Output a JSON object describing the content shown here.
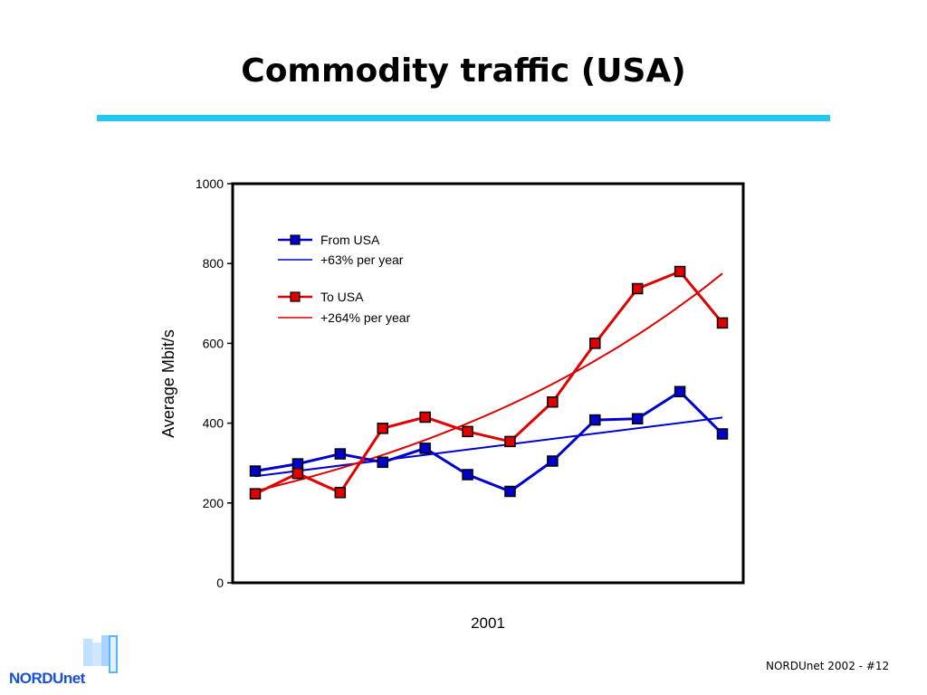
{
  "slide": {
    "title": "Commodity traffic (USA)",
    "footer": "NORDUnet 2002  - #12",
    "logo_text": "NORDUnet"
  },
  "colors": {
    "title_rule": "#1ec8f0",
    "from_usa": "#0000cc",
    "to_usa": "#e00000",
    "logo": "#1a4fd6"
  },
  "chart_data": {
    "type": "line",
    "title": "",
    "xlabel": "2001",
    "ylabel": "Average Mbit/s",
    "ylim": [
      0,
      1000
    ],
    "yticks": [
      0,
      200,
      400,
      600,
      800,
      1000
    ],
    "x": [
      1,
      2,
      3,
      4,
      5,
      6,
      7,
      8,
      9,
      10,
      11,
      12
    ],
    "grid": false,
    "legend_position": "top-left",
    "series": [
      {
        "name": "From USA",
        "color": "#0000cc",
        "values": [
          280,
          298,
          323,
          302,
          337,
          271,
          229,
          305,
          408,
          411,
          479,
          373
        ]
      },
      {
        "name": "To USA",
        "color": "#e00000",
        "values": [
          223,
          274,
          226,
          387,
          415,
          379,
          354,
          453,
          600,
          737,
          780,
          651
        ]
      }
    ],
    "trendlines": [
      {
        "name": "+63% per year",
        "color": "#0000cc",
        "values": [
          267,
          414
        ]
      },
      {
        "name": "+264% per year",
        "color": "#e00000",
        "values": [
          230,
          775
        ]
      }
    ]
  }
}
